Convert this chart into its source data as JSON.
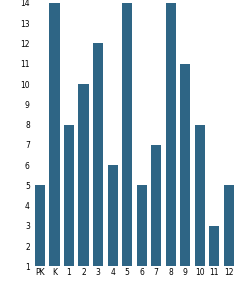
{
  "categories": [
    "PK",
    "K",
    "1",
    "2",
    "3",
    "4",
    "5",
    "6",
    "7",
    "8",
    "9",
    "10",
    "11",
    "12"
  ],
  "values": [
    5,
    14,
    8,
    10,
    12,
    6,
    14,
    5,
    7,
    14,
    11,
    8,
    3,
    5
  ],
  "bar_color": "#2e6585",
  "ylim": [
    1,
    14
  ],
  "yticks": [
    1,
    2,
    3,
    4,
    5,
    6,
    7,
    8,
    9,
    10,
    11,
    12,
    13,
    14
  ],
  "background_color": "#ffffff",
  "tick_fontsize": 5.5,
  "bar_width": 0.7
}
